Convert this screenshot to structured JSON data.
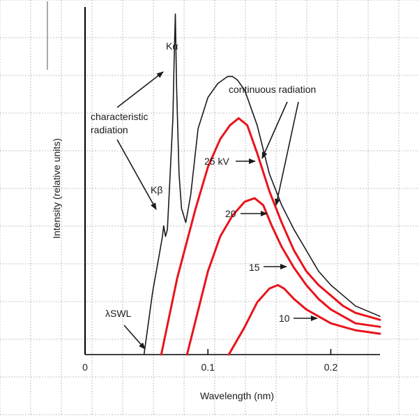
{
  "chart_data": {
    "type": "line",
    "xlabel": "Wavelength (nm)",
    "ylabel": "Intensity (relative units)",
    "xlim": [
      0,
      0.24
    ],
    "ylim": [
      0,
      1.0
    ],
    "x_ticks": [
      {
        "value": 0,
        "label": "0"
      },
      {
        "value": 0.1,
        "label": "0.1"
      },
      {
        "value": 0.2,
        "label": "0.2"
      }
    ],
    "grid": true,
    "colors": {
      "25kV": "#1a1a1a",
      "lower_kV": "#e8141b",
      "frame": "#000000",
      "grid": "#c0c0c0"
    },
    "series": [
      {
        "name": "25 kV",
        "x": [
          0.048,
          0.055,
          0.06,
          0.063,
          0.064,
          0.0655,
          0.067,
          0.069,
          0.0715,
          0.0725,
          0.0735,
          0.0745,
          0.0765,
          0.0785,
          0.082,
          0.086,
          0.092,
          0.1,
          0.108,
          0.116,
          0.12,
          0.124,
          0.13,
          0.14,
          0.15,
          0.16,
          0.17,
          0.18,
          0.19,
          0.2,
          0.21,
          0.22,
          0.24
        ],
        "y": [
          0.0,
          0.18,
          0.28,
          0.34,
          0.37,
          0.34,
          0.36,
          0.5,
          0.68,
          0.85,
          0.98,
          0.77,
          0.52,
          0.42,
          0.38,
          0.46,
          0.65,
          0.74,
          0.78,
          0.8,
          0.8,
          0.79,
          0.76,
          0.66,
          0.52,
          0.43,
          0.36,
          0.3,
          0.24,
          0.2,
          0.17,
          0.14,
          0.11
        ]
      },
      {
        "name": "20",
        "x": [
          0.062,
          0.075,
          0.09,
          0.1,
          0.11,
          0.118,
          0.125,
          0.132,
          0.14,
          0.15,
          0.16,
          0.17,
          0.18,
          0.19,
          0.2,
          0.21,
          0.22,
          0.24
        ],
        "y": [
          0.0,
          0.22,
          0.42,
          0.54,
          0.62,
          0.66,
          0.68,
          0.66,
          0.58,
          0.47,
          0.38,
          0.3,
          0.24,
          0.2,
          0.17,
          0.14,
          0.12,
          0.1
        ]
      },
      {
        "name": "15",
        "x": [
          0.083,
          0.1,
          0.11,
          0.12,
          0.13,
          0.138,
          0.145,
          0.152,
          0.16,
          0.17,
          0.18,
          0.19,
          0.2,
          0.21,
          0.22,
          0.24
        ],
        "y": [
          0.0,
          0.24,
          0.34,
          0.4,
          0.44,
          0.45,
          0.43,
          0.37,
          0.31,
          0.25,
          0.2,
          0.16,
          0.13,
          0.11,
          0.09,
          0.08
        ]
      },
      {
        "name": "10",
        "x": [
          0.117,
          0.13,
          0.14,
          0.15,
          0.157,
          0.162,
          0.17,
          0.18,
          0.19,
          0.2,
          0.21,
          0.22,
          0.24
        ],
        "y": [
          0.0,
          0.08,
          0.15,
          0.19,
          0.2,
          0.19,
          0.16,
          0.13,
          0.11,
          0.09,
          0.08,
          0.07,
          0.06
        ]
      }
    ],
    "annotations": {
      "k_alpha": "Kα",
      "k_beta": "Kβ",
      "characteristic": [
        "characteristic",
        "radiation"
      ],
      "continuous": "continuous radiation",
      "lambda_swl": "λSWL",
      "kv_25": "25 kV",
      "kv_20": "20",
      "kv_15": "15",
      "kv_10": "10"
    }
  }
}
